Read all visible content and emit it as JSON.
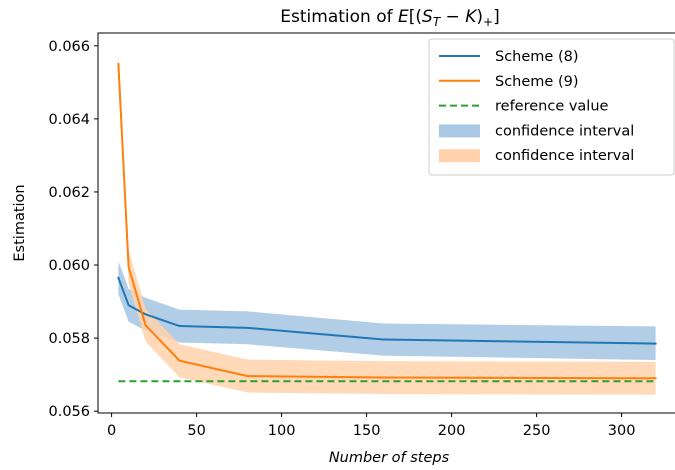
{
  "chart_data": {
    "type": "line",
    "title": {
      "prefix": "Estimation of ",
      "E": "E",
      "open": "[(",
      "S": "S",
      "sub_T": "T",
      "minus": " − ",
      "K": "K",
      "close": ")",
      "sub_plus": "+",
      "end": "]"
    },
    "xlabel": "Number of steps",
    "ylabel": "Estimation",
    "xlim": [
      -8,
      332
    ],
    "ylim": [
      0.05595,
      0.06635
    ],
    "xticks": [
      0,
      50,
      100,
      150,
      200,
      250,
      300
    ],
    "yticks": [
      0.056,
      0.058,
      0.06,
      0.062,
      0.064,
      0.066
    ],
    "ytick_labels": [
      "0.056",
      "0.058",
      "0.060",
      "0.062",
      "0.064",
      "0.066"
    ],
    "grid": false,
    "legend_position": "top-right",
    "colors": {
      "scheme8": "#1f77b4",
      "scheme9": "#ff7f0e",
      "reference": "#2ca02c",
      "ci8": "#aac8e3",
      "ci9": "#ffd2ab"
    },
    "x": [
      4,
      10,
      20,
      40,
      80,
      160,
      320
    ],
    "series": [
      {
        "name": "Scheme (8)",
        "values": [
          0.05965,
          0.0589,
          0.05865,
          0.05833,
          0.05828,
          0.05796,
          0.05785
        ],
        "ci_lower": [
          0.0592,
          0.05845,
          0.0582,
          0.05788,
          0.05783,
          0.05752,
          0.0574
        ],
        "ci_upper": [
          0.0601,
          0.05935,
          0.0591,
          0.05878,
          0.05873,
          0.0584,
          0.05832
        ]
      },
      {
        "name": "Scheme (9)",
        "values": [
          0.0655,
          0.05995,
          0.05835,
          0.05738,
          0.05696,
          0.05692,
          0.0569
        ],
        "ci_lower": [
          0.0651,
          0.0595,
          0.0579,
          0.05693,
          0.05651,
          0.05647,
          0.05645
        ],
        "ci_upper": [
          0.0659,
          0.0604,
          0.0588,
          0.05783,
          0.05741,
          0.05737,
          0.05735
        ]
      }
    ],
    "reference": {
      "name": "reference value",
      "value": 0.05682
    },
    "legend": [
      {
        "label": "Scheme (8)",
        "kind": "line",
        "color": "#1f77b4"
      },
      {
        "label": "Scheme (9)",
        "kind": "line",
        "color": "#ff7f0e"
      },
      {
        "label": "reference value",
        "kind": "dashed",
        "color": "#2ca02c"
      },
      {
        "label": "confidence interval",
        "kind": "patch",
        "color": "#aac8e3"
      },
      {
        "label": "confidence interval",
        "kind": "patch",
        "color": "#ffd2ab"
      }
    ]
  }
}
